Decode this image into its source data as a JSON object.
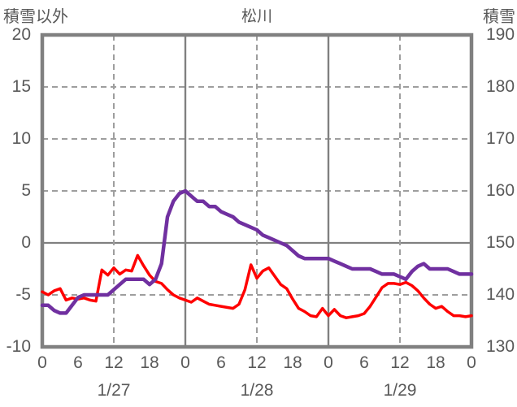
{
  "chart_data": {
    "type": "line",
    "title": "松川",
    "left_axis": {
      "title": "積雪以外",
      "min": -10,
      "max": 20,
      "ticks": [
        20,
        15,
        10,
        5,
        0,
        -5,
        -10
      ]
    },
    "right_axis": {
      "title": "積雪",
      "min": 130,
      "max": 190,
      "ticks": [
        190,
        180,
        170,
        160,
        150,
        140,
        130
      ]
    },
    "x_axis": {
      "total_hours": 72,
      "tick_step": 6,
      "hour_labels": [
        "0",
        "6",
        "12",
        "18",
        "0",
        "6",
        "12",
        "18",
        "0",
        "6",
        "12",
        "18",
        "0"
      ],
      "date_labels": [
        {
          "label": "1/27",
          "hour": 12
        },
        {
          "label": "1/28",
          "hour": 36
        },
        {
          "label": "1/29",
          "hour": 60
        }
      ]
    },
    "grid": {
      "dashed_color": "#9e9e9e",
      "solid_color": "#808080",
      "border_color": "#808080",
      "noon_hours": [
        12,
        36,
        60
      ],
      "midnight_hours": [
        24,
        48
      ],
      "dashed_left_values": [
        15,
        10,
        5,
        -5
      ],
      "solid_left_values": [
        0
      ]
    },
    "text_color": "#595959",
    "series": [
      {
        "name": "積雪以外",
        "axis": "left",
        "color": "#ff0000",
        "width": 3.5,
        "values": [
          -4.7,
          -5.0,
          -4.6,
          -4.4,
          -5.5,
          -5.3,
          -5.4,
          -5.3,
          -5.5,
          -5.6,
          -2.6,
          -3.1,
          -2.4,
          -3.0,
          -2.6,
          -2.7,
          -1.2,
          -2.2,
          -3.1,
          -3.7,
          -3.9,
          -4.5,
          -5.0,
          -5.3,
          -5.5,
          -5.7,
          -5.3,
          -5.6,
          -5.9,
          -6.0,
          -6.1,
          -6.2,
          -6.3,
          -5.9,
          -4.5,
          -2.1,
          -3.4,
          -2.7,
          -2.4,
          -3.2,
          -4.0,
          -4.4,
          -5.4,
          -6.3,
          -6.6,
          -7.0,
          -7.1,
          -6.3,
          -7.0,
          -6.4,
          -7.0,
          -7.2,
          -7.1,
          -7.0,
          -6.8,
          -6.1,
          -5.2,
          -4.3,
          -3.9,
          -3.9,
          -4.0,
          -3.8,
          -4.1,
          -4.6,
          -5.3,
          -5.9,
          -6.3,
          -6.1,
          -6.6,
          -7.0,
          -7.0,
          -7.1,
          -7.0
        ]
      },
      {
        "name": "積雪",
        "axis": "right",
        "color": "#7030a0",
        "width": 4.5,
        "values": [
          138,
          138,
          137,
          136.5,
          136.5,
          138,
          139.5,
          140,
          140,
          140,
          140,
          140,
          141,
          142,
          143,
          143,
          143,
          143,
          142,
          143,
          146,
          155,
          158,
          159.5,
          160,
          159,
          158,
          158,
          157,
          157,
          156,
          155.5,
          155,
          154,
          153.5,
          153,
          152.5,
          151.5,
          151,
          150.5,
          150,
          149.5,
          148.5,
          147.5,
          147,
          147,
          147,
          147,
          147,
          146.5,
          146,
          145.5,
          145,
          145,
          145,
          145,
          144.5,
          144,
          144,
          144,
          143.5,
          143,
          144.5,
          145.5,
          146,
          145,
          145,
          145,
          145,
          144.5,
          144,
          144,
          144
        ]
      }
    ]
  }
}
